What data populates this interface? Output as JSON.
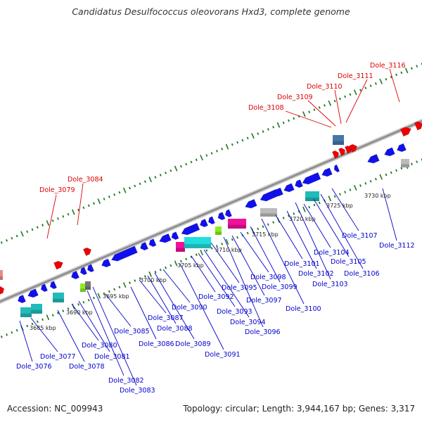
{
  "title": "Candidatus Desulfococcus oleovorans Hxd3, complete genome",
  "footer": {
    "accession": "Accession: NC_009943",
    "summary": "Topology: circular; Length: 3,944,167 bp; Genes: 3,317"
  },
  "colors": {
    "forward_label": "#dd0000",
    "reverse_label": "#0000cc",
    "backbone": "#999999",
    "tick": "#227722",
    "gene_blue": "#1010ee",
    "gene_red": "#ee0000",
    "gene_cyan": "#22dddd",
    "gene_teal": "#22bbbb",
    "gene_magenta": "#ee1199",
    "gene_green": "#88ee22",
    "gene_gray": "#bbbbbb",
    "gene_steel": "#4477aa",
    "gene_pink": "#ee8888"
  },
  "axis_ticks": [
    "3685 kbp",
    "3690 kbp",
    "3695 kbp",
    "3700 kbp",
    "3705 kbp",
    "3710 kbp",
    "3715 kbp",
    "3720 kbp",
    "3725 kbp",
    "3730 kbp"
  ],
  "forward_labels": [
    "Dole_3079",
    "Dole_3084",
    "Dole_3108",
    "Dole_3109",
    "Dole_3110",
    "Dole_3111",
    "Dole_3116"
  ],
  "reverse_labels": [
    "Dole_3076",
    "Dole_3077",
    "Dole_3078",
    "Dole_3080",
    "Dole_3081",
    "Dole_3082",
    "Dole_3083",
    "Dole_3085",
    "Dole_3086",
    "Dole_3087",
    "Dole_3088",
    "Dole_3089",
    "Dole_3090",
    "Dole_3091",
    "Dole_3092",
    "Dole_3093",
    "Dole_3094",
    "Dole_3095",
    "Dole_3096",
    "Dole_3097",
    "Dole_3098",
    "Dole_3099",
    "Dole_3100",
    "Dole_3101",
    "Dole_3102",
    "Dole_3103",
    "Dole_3104",
    "Dole_3105",
    "Dole_3106",
    "Dole_3107",
    "Dole_3112"
  ]
}
